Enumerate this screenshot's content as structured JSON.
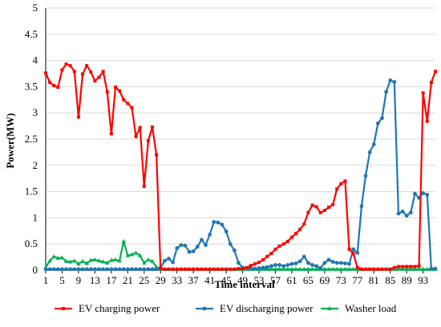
{
  "chart_data": {
    "type": "line",
    "title": "",
    "xlabel": "Time interval",
    "ylabel": "Power(MW)",
    "ylim": [
      0,
      5
    ],
    "xlim": [
      1,
      96
    ],
    "grid": "horizontal",
    "legend_position": "bottom",
    "y_ticks": [
      "0",
      "0.5",
      "1",
      "1.5",
      "2",
      "2.5",
      "3",
      "3.5",
      "4",
      "4.5",
      "5"
    ],
    "x_ticks": [
      "1",
      "5",
      "9",
      "13",
      "17",
      "21",
      "25",
      "29",
      "33",
      "37",
      "41",
      "45",
      "49",
      "53",
      "57",
      "61",
      "65",
      "69",
      "73",
      "77",
      "81",
      "85",
      "89",
      "93"
    ],
    "x_tick_values": [
      1,
      5,
      9,
      13,
      17,
      21,
      25,
      29,
      33,
      37,
      41,
      45,
      49,
      53,
      57,
      61,
      65,
      69,
      73,
      77,
      81,
      85,
      89,
      93
    ],
    "x": [
      1,
      2,
      3,
      4,
      5,
      6,
      7,
      8,
      9,
      10,
      11,
      12,
      13,
      14,
      15,
      16,
      17,
      18,
      19,
      20,
      21,
      22,
      23,
      24,
      25,
      26,
      27,
      28,
      29,
      30,
      31,
      32,
      33,
      34,
      35,
      36,
      37,
      38,
      39,
      40,
      41,
      42,
      43,
      44,
      45,
      46,
      47,
      48,
      49,
      50,
      51,
      52,
      53,
      54,
      55,
      56,
      57,
      58,
      59,
      60,
      61,
      62,
      63,
      64,
      65,
      66,
      67,
      68,
      69,
      70,
      71,
      72,
      73,
      74,
      75,
      76,
      77,
      78,
      79,
      80,
      81,
      82,
      83,
      84,
      85,
      86,
      87,
      88,
      89,
      90,
      91,
      92,
      93,
      94,
      95,
      96
    ],
    "series": [
      {
        "name": "EV charging power",
        "color": "#ff0000",
        "marker": "square",
        "values": [
          3.76,
          3.58,
          3.52,
          3.49,
          3.82,
          3.93,
          3.9,
          3.79,
          2.92,
          3.74,
          3.9,
          3.78,
          3.61,
          3.68,
          3.79,
          3.4,
          2.6,
          3.49,
          3.42,
          3.25,
          3.18,
          3.1,
          2.55,
          2.72,
          1.6,
          2.47,
          2.73,
          2.2,
          0.03,
          0.02,
          0.02,
          0.02,
          0.02,
          0.02,
          0.02,
          0.02,
          0.02,
          0.02,
          0.02,
          0.02,
          0.02,
          0.02,
          0.02,
          0.02,
          0.02,
          0.02,
          0.02,
          0.03,
          0.03,
          0.05,
          0.09,
          0.12,
          0.15,
          0.2,
          0.26,
          0.32,
          0.4,
          0.46,
          0.5,
          0.55,
          0.63,
          0.7,
          0.78,
          0.88,
          1.1,
          1.24,
          1.21,
          1.1,
          1.14,
          1.2,
          1.25,
          1.55,
          1.65,
          1.7,
          0.4,
          0.32,
          0.05,
          0.02,
          0.02,
          0.02,
          0.02,
          0.02,
          0.02,
          0.02,
          0.02,
          0.05,
          0.07,
          0.07,
          0.07,
          0.07,
          0.07,
          0.08,
          3.38,
          2.84,
          3.58,
          3.79
        ]
      },
      {
        "name": "EV discharging power",
        "color": "#1f77b4",
        "marker": "circle",
        "values": [
          0.02,
          0.02,
          0.02,
          0.02,
          0.02,
          0.02,
          0.02,
          0.02,
          0.02,
          0.02,
          0.02,
          0.02,
          0.02,
          0.02,
          0.02,
          0.02,
          0.02,
          0.02,
          0.02,
          0.02,
          0.02,
          0.02,
          0.02,
          0.02,
          0.02,
          0.02,
          0.02,
          0.02,
          0.05,
          0.18,
          0.22,
          0.15,
          0.42,
          0.48,
          0.47,
          0.35,
          0.36,
          0.45,
          0.58,
          0.48,
          0.68,
          0.92,
          0.91,
          0.87,
          0.74,
          0.5,
          0.38,
          0.14,
          0.05,
          0.04,
          0.03,
          0.03,
          0.04,
          0.05,
          0.06,
          0.08,
          0.1,
          0.1,
          0.08,
          0.1,
          0.12,
          0.13,
          0.17,
          0.26,
          0.14,
          0.1,
          0.08,
          0.04,
          0.14,
          0.2,
          0.16,
          0.14,
          0.14,
          0.13,
          0.12,
          0.4,
          0.33,
          1.22,
          1.8,
          2.25,
          2.4,
          2.8,
          2.9,
          3.4,
          3.62,
          3.59,
          1.08,
          1.12,
          1.04,
          1.1,
          1.46,
          1.38,
          1.47,
          1.44,
          0.03,
          0.03
        ]
      },
      {
        "name": "Washer load",
        "color": "#00b050",
        "marker": "triangle",
        "values": [
          0.05,
          0.18,
          0.26,
          0.23,
          0.24,
          0.17,
          0.16,
          0.18,
          0.12,
          0.17,
          0.13,
          0.19,
          0.2,
          0.18,
          0.16,
          0.14,
          0.19,
          0.2,
          0.18,
          0.55,
          0.28,
          0.3,
          0.33,
          0.28,
          0.14,
          0.2,
          0.17,
          0.06,
          0.02,
          0.02,
          0.02,
          0.02,
          0.02,
          0.02,
          0.02,
          0.02,
          0.02,
          0.02,
          0.02,
          0.02,
          0.02,
          0.02,
          0.02,
          0.02,
          0.02,
          0.02,
          0.02,
          0.02,
          0.02,
          0.02,
          0.02,
          0.02,
          0.02,
          0.02,
          0.02,
          0.02,
          0.02,
          0.02,
          0.02,
          0.02,
          0.02,
          0.02,
          0.02,
          0.02,
          0.02,
          0.02,
          0.02,
          0.02,
          0.02,
          0.02,
          0.02,
          0.02,
          0.02,
          0.02,
          0.02,
          0.02,
          0.02,
          0.02,
          0.02,
          0.02,
          0.02,
          0.02,
          0.02,
          0.02,
          0.02,
          0.02,
          0.02,
          0.02,
          0.02,
          0.02,
          0.02,
          0.02,
          0.02,
          0.02,
          0.02,
          0.02
        ]
      }
    ]
  }
}
